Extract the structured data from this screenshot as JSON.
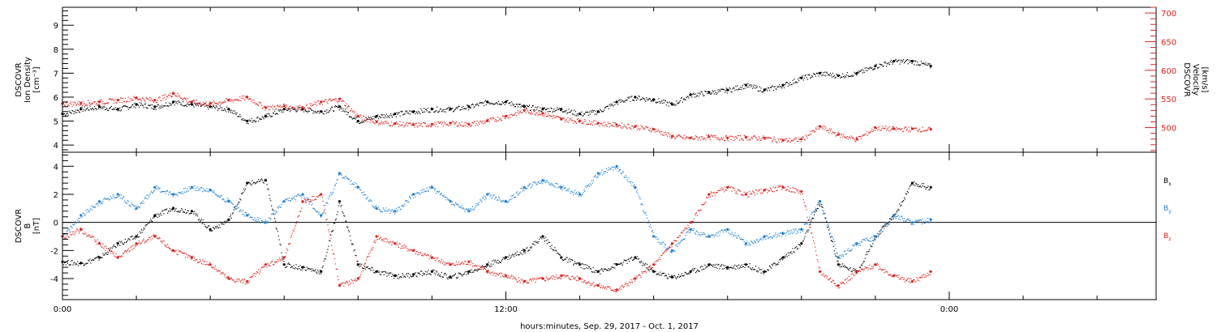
{
  "chart_data": {
    "xlabel": "hours:minutes, Sep. 29, 2017 - Oct. 1, 2017",
    "x_unit": "hours",
    "x_range": [
      0,
      29.6
    ],
    "x_ticks": [
      0,
      12,
      24
    ],
    "x_ticklabels": [
      "0:00",
      "12:00",
      "0:00"
    ],
    "panels": [
      {
        "type": "scatter",
        "left_axis": {
          "label_lines": [
            "DSCOVR",
            "Ion Density"
          ],
          "unit": "[cm⁻³]",
          "ylim": [
            3.7,
            9.75
          ],
          "ticks": [
            4,
            5,
            6,
            7,
            8,
            9
          ],
          "color": "#000000"
        },
        "right_axis": {
          "label_lines": [
            "DSCOVR",
            "Velocity"
          ],
          "unit": "[km/s]",
          "ylim": [
            457,
            710
          ],
          "ticks": [
            500,
            550,
            600,
            650,
            700
          ],
          "color": "#e0201b"
        },
        "series": [
          {
            "axis": "left",
            "color": "#000000",
            "x": [
              0,
              0.5,
              1,
              1.5,
              2,
              2.5,
              3,
              3.5,
              4,
              4.5,
              5,
              5.5,
              6,
              6.5,
              7,
              7.5,
              8,
              8.5,
              9,
              9.5,
              10,
              10.5,
              11,
              11.5,
              12,
              12.5,
              13,
              13.5,
              14,
              14.5,
              15,
              15.5,
              16,
              16.5,
              17,
              17.5,
              18,
              18.5,
              19,
              19.5,
              20,
              20.5,
              21,
              21.5,
              22,
              22.5,
              23,
              23.5
            ],
            "values": [
              5.3,
              5.5,
              5.6,
              5.5,
              5.7,
              5.6,
              5.8,
              5.7,
              5.6,
              5.5,
              5.0,
              5.2,
              5.5,
              5.5,
              5.4,
              5.6,
              5.0,
              5.2,
              5.3,
              5.4,
              5.5,
              5.5,
              5.6,
              5.8,
              5.8,
              5.6,
              5.5,
              5.5,
              5.3,
              5.4,
              5.8,
              6.0,
              5.9,
              5.7,
              6.1,
              6.2,
              6.3,
              6.5,
              6.3,
              6.5,
              6.8,
              7.0,
              6.9,
              7.0,
              7.3,
              7.5,
              7.5,
              7.3
            ]
          },
          {
            "axis": "right",
            "color": "#e0201b",
            "x": [
              0,
              0.5,
              1,
              1.5,
              2,
              2.5,
              3,
              3.5,
              4,
              4.5,
              5,
              5.5,
              6,
              6.5,
              7,
              7.5,
              8,
              8.5,
              9,
              9.5,
              10,
              10.5,
              11,
              11.5,
              12,
              12.5,
              13,
              13.5,
              14,
              14.5,
              15,
              15.5,
              16,
              16.5,
              17,
              17.5,
              18,
              18.5,
              19,
              19.5,
              20,
              20.5,
              21,
              21.5,
              22,
              22.5,
              23,
              23.5
            ],
            "values": [
              542,
              543,
              545,
              548,
              552,
              548,
              560,
              545,
              542,
              548,
              553,
              535,
              538,
              535,
              545,
              550,
              520,
              510,
              507,
              505,
              506,
              508,
              506,
              512,
              520,
              530,
              525,
              515,
              512,
              508,
              505,
              502,
              497,
              485,
              482,
              484,
              482,
              483,
              482,
              478,
              480,
              502,
              488,
              480,
              500,
              498,
              498,
              497
            ]
          }
        ]
      },
      {
        "type": "scatter",
        "left_axis": {
          "label_lines": [
            "DSCOVR",
            "B"
          ],
          "unit": "[nT]",
          "ylim": [
            -5.5,
            5.0
          ],
          "ticks": [
            -4,
            -2,
            0,
            2,
            4
          ],
          "color": "#000000"
        },
        "zero_line": true,
        "legend": [
          {
            "label": "B",
            "sub": "x",
            "color": "#000000"
          },
          {
            "label": "B",
            "sub": "y",
            "color": "#1a7fd6"
          },
          {
            "label": "B",
            "sub": "z",
            "color": "#e0201b"
          }
        ],
        "series": [
          {
            "name": "Bx",
            "color": "#000000",
            "x": [
              0,
              0.5,
              1,
              1.5,
              2,
              2.5,
              3,
              3.5,
              4,
              4.5,
              5,
              5.5,
              6,
              6.5,
              7,
              7.5,
              8,
              8.5,
              9,
              9.5,
              10,
              10.5,
              11,
              11.5,
              12,
              12.5,
              13,
              13.5,
              14,
              14.5,
              15,
              15.5,
              16,
              16.5,
              17,
              17.5,
              18,
              18.5,
              19,
              19.5,
              20,
              20.5,
              21,
              21.5,
              22,
              22.5,
              23,
              23.5
            ],
            "values": [
              -2.8,
              -2.9,
              -2.5,
              -1.5,
              -1.0,
              0.5,
              1.0,
              0.8,
              -0.5,
              0.2,
              2.8,
              3.0,
              -3.0,
              -3.2,
              -3.5,
              1.5,
              -3.0,
              -3.5,
              -3.8,
              -3.7,
              -3.5,
              -3.9,
              -3.5,
              -3.0,
              -2.5,
              -2.0,
              -1.0,
              -2.5,
              -3.0,
              -3.5,
              -3.0,
              -2.5,
              -3.5,
              -3.9,
              -3.5,
              -3.0,
              -3.2,
              -3.0,
              -3.5,
              -2.5,
              -1.5,
              1.5,
              -3.0,
              -3.5,
              -1.0,
              0.5,
              2.8,
              2.5
            ]
          },
          {
            "name": "By",
            "color": "#1a7fd6",
            "x": [
              0,
              0.5,
              1,
              1.5,
              2,
              2.5,
              3,
              3.5,
              4,
              4.5,
              5,
              5.5,
              6,
              6.5,
              7,
              7.5,
              8,
              8.5,
              9,
              9.5,
              10,
              10.5,
              11,
              11.5,
              12,
              12.5,
              13,
              13.5,
              14,
              14.5,
              15,
              15.5,
              16,
              16.5,
              17,
              17.5,
              18,
              18.5,
              19,
              19.5,
              20,
              20.5,
              21,
              21.5,
              22,
              22.5,
              23,
              23.5
            ],
            "values": [
              -1.0,
              0.5,
              1.5,
              2.0,
              1.0,
              2.5,
              2.0,
              2.5,
              2.3,
              1.5,
              0.5,
              0.0,
              1.5,
              2.0,
              0.5,
              3.5,
              2.5,
              1.0,
              0.8,
              2.0,
              2.5,
              1.5,
              0.8,
              2.0,
              1.5,
              2.5,
              3.0,
              2.5,
              2.0,
              3.5,
              4.0,
              2.5,
              -1.0,
              -2.0,
              -0.5,
              -1.0,
              -0.5,
              -1.5,
              -1.0,
              -0.8,
              -0.5,
              1.5,
              -2.5,
              -1.5,
              -1.0,
              0.5,
              0.0,
              0.2
            ]
          },
          {
            "name": "Bz",
            "color": "#e0201b",
            "x": [
              0,
              0.5,
              1,
              1.5,
              2,
              2.5,
              3,
              3.5,
              4,
              4.5,
              5,
              5.5,
              6,
              6.5,
              7,
              7.5,
              8,
              8.5,
              9,
              9.5,
              10,
              10.5,
              11,
              11.5,
              12,
              12.5,
              13,
              13.5,
              14,
              14.5,
              15,
              15.5,
              16,
              16.5,
              17,
              17.5,
              18,
              18.5,
              19,
              19.5,
              20,
              20.5,
              21,
              21.5,
              22,
              22.5,
              23,
              23.5
            ],
            "values": [
              -1.0,
              -0.5,
              -1.5,
              -2.5,
              -1.5,
              -1.0,
              -2.0,
              -2.5,
              -3.0,
              -4.0,
              -4.2,
              -3.0,
              -2.5,
              1.5,
              2.0,
              -4.5,
              -4.0,
              -1.0,
              -1.5,
              -2.0,
              -2.5,
              -3.0,
              -2.8,
              -3.5,
              -3.8,
              -4.2,
              -4.0,
              -3.8,
              -4.0,
              -4.5,
              -4.8,
              -4.0,
              -3.0,
              -1.5,
              0.0,
              2.0,
              2.5,
              2.0,
              2.3,
              2.5,
              2.2,
              -3.5,
              -4.5,
              -3.5,
              -3.0,
              -3.8,
              -4.2,
              -3.5
            ]
          }
        ]
      }
    ]
  }
}
